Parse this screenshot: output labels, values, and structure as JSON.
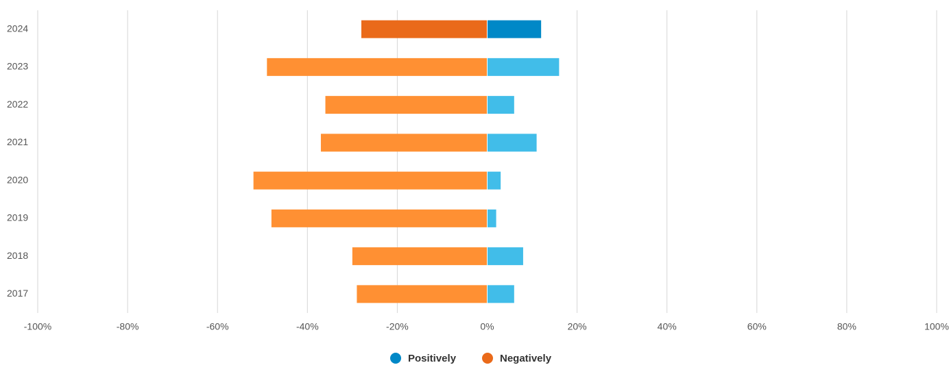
{
  "chart_data": {
    "type": "bar",
    "orientation": "horizontal",
    "categories": [
      "2024",
      "2023",
      "2022",
      "2021",
      "2020",
      "2019",
      "2018",
      "2017"
    ],
    "series": [
      {
        "name": "Positively",
        "color": "#0088c7",
        "point_colors": [
          "#0088c7",
          "#41bde9",
          "#41bde9",
          "#41bde9",
          "#41bde9",
          "#41bde9",
          "#41bde9",
          "#41bde9"
        ],
        "values": [
          12,
          16,
          6,
          11,
          3,
          2,
          8,
          6
        ]
      },
      {
        "name": "Negatively",
        "color": "#ea6a1a",
        "point_colors": [
          "#ea6a1a",
          "#ff9033",
          "#ff9033",
          "#ff9033",
          "#ff9033",
          "#ff9033",
          "#ff9033",
          "#ff9033"
        ],
        "values": [
          -28,
          -49,
          -36,
          -37,
          -52,
          -48,
          -30,
          -29
        ]
      }
    ],
    "xlim": [
      -100,
      100
    ],
    "xticks": [
      {
        "value": -100,
        "label": "-100%"
      },
      {
        "value": -80,
        "label": "-80%"
      },
      {
        "value": -60,
        "label": "-60%"
      },
      {
        "value": -40,
        "label": "-40%"
      },
      {
        "value": -20,
        "label": "-20%"
      },
      {
        "value": 0,
        "label": "0%"
      },
      {
        "value": 20,
        "label": "20%"
      },
      {
        "value": 40,
        "label": "40%"
      },
      {
        "value": 60,
        "label": "60%"
      },
      {
        "value": 80,
        "label": "80%"
      },
      {
        "value": 100,
        "label": "100%"
      }
    ],
    "grid": true,
    "legend": "bottom"
  }
}
